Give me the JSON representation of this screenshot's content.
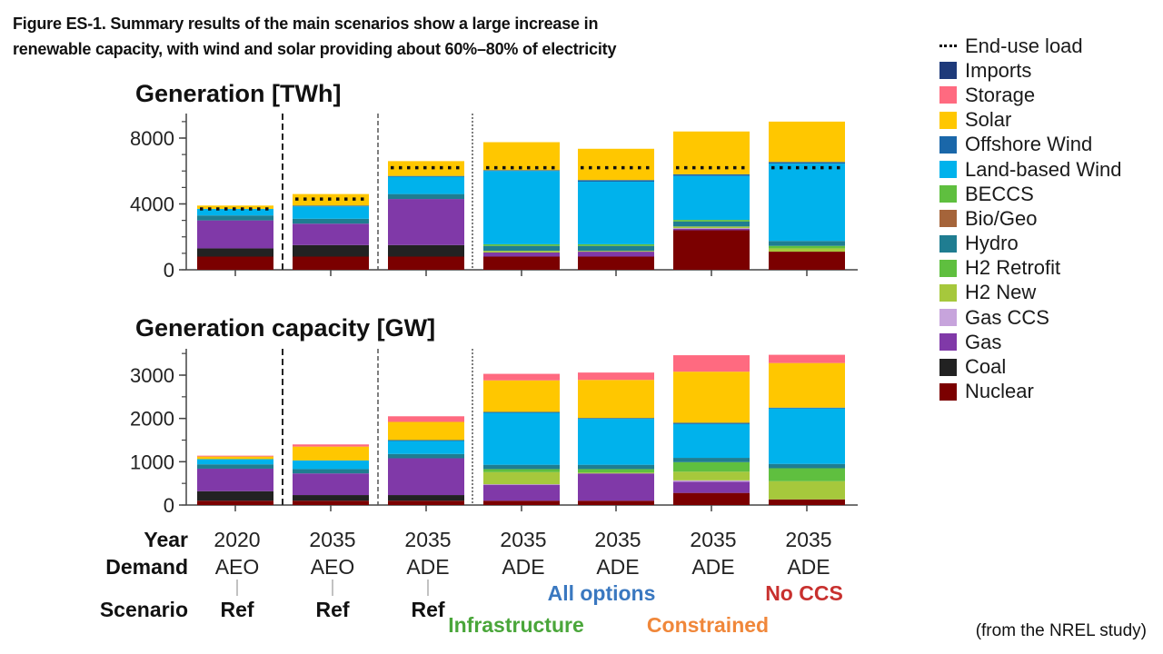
{
  "caption": {
    "line1": "Figure ES-1. Summary results of the main scenarios show a large increase in",
    "line2": "renewable capacity, with wind and solar providing about 60%–80% of electricity"
  },
  "source_note": "(from the NREL study)",
  "chart_data": [
    {
      "type": "bar",
      "stacked": true,
      "title": "Generation [TWh]",
      "ylabel": "TWh",
      "ylim": [
        0,
        9400
      ],
      "yticks": [
        0,
        4000,
        8000
      ],
      "grid": false,
      "categories": [
        "2020 AEO Ref",
        "2035 AEO Ref",
        "2035 ADE Ref",
        "2035 ADE All options",
        "2035 ADE Infrastructure",
        "2035 ADE Constrained",
        "2035 ADE No CCS"
      ],
      "series": [
        {
          "name": "Nuclear",
          "values": [
            800,
            800,
            800,
            800,
            800,
            2400,
            1100
          ]
        },
        {
          "name": "Coal",
          "values": [
            500,
            700,
            700,
            0,
            0,
            0,
            0
          ]
        },
        {
          "name": "Gas",
          "values": [
            1700,
            1300,
            2800,
            250,
            300,
            100,
            0
          ]
        },
        {
          "name": "Gas CCS",
          "values": [
            0,
            0,
            0,
            0,
            0,
            30,
            0
          ]
        },
        {
          "name": "H2 New",
          "values": [
            0,
            0,
            0,
            100,
            50,
            100,
            200
          ]
        },
        {
          "name": "H2 Retrofit",
          "values": [
            0,
            0,
            0,
            0,
            0,
            0,
            150
          ]
        },
        {
          "name": "Hydro",
          "values": [
            300,
            300,
            300,
            300,
            300,
            300,
            300
          ]
        },
        {
          "name": "Bio/Geo",
          "values": [
            0,
            0,
            0,
            0,
            0,
            0,
            0
          ]
        },
        {
          "name": "BECCS",
          "values": [
            0,
            0,
            0,
            100,
            100,
            100,
            0
          ]
        },
        {
          "name": "Land-based Wind",
          "values": [
            400,
            750,
            1050,
            4450,
            3800,
            2670,
            4700
          ]
        },
        {
          "name": "Offshore Wind",
          "values": [
            0,
            50,
            50,
            50,
            100,
            100,
            100
          ]
        },
        {
          "name": "Solar",
          "values": [
            200,
            700,
            900,
            1700,
            1900,
            2600,
            2450
          ]
        },
        {
          "name": "Storage",
          "values": [
            0,
            0,
            0,
            0,
            0,
            0,
            0
          ]
        },
        {
          "name": "Imports",
          "values": [
            0,
            0,
            0,
            0,
            0,
            0,
            0
          ]
        }
      ],
      "end_use_load": [
        3700,
        4300,
        6200,
        6200,
        6200,
        6200,
        6200
      ]
    },
    {
      "type": "bar",
      "stacked": true,
      "title": "Generation capacity [GW]",
      "ylabel": "GW",
      "ylim": [
        0,
        3650
      ],
      "yticks": [
        0,
        1000,
        2000,
        3000
      ],
      "grid": false,
      "categories": [
        "2020 AEO Ref",
        "2035 AEO Ref",
        "2035 ADE Ref",
        "2035 ADE All options",
        "2035 ADE Infrastructure",
        "2035 ADE Constrained",
        "2035 ADE No CCS"
      ],
      "series": [
        {
          "name": "Nuclear",
          "values": [
            100,
            100,
            100,
            100,
            100,
            280,
            130
          ]
        },
        {
          "name": "Coal",
          "values": [
            220,
            130,
            130,
            0,
            0,
            0,
            0
          ]
        },
        {
          "name": "Gas",
          "values": [
            520,
            500,
            850,
            370,
            630,
            260,
            0
          ]
        },
        {
          "name": "Gas CCS",
          "values": [
            0,
            0,
            0,
            10,
            0,
            30,
            0
          ]
        },
        {
          "name": "H2 New",
          "values": [
            0,
            0,
            0,
            280,
            20,
            200,
            420
          ]
        },
        {
          "name": "H2 Retrofit",
          "values": [
            0,
            0,
            0,
            70,
            80,
            220,
            300
          ]
        },
        {
          "name": "Hydro",
          "values": [
            100,
            100,
            100,
            100,
            100,
            100,
            100
          ]
        },
        {
          "name": "Bio/Geo",
          "values": [
            0,
            0,
            0,
            0,
            0,
            0,
            0
          ]
        },
        {
          "name": "BECCS",
          "values": [
            0,
            0,
            0,
            0,
            0,
            0,
            0
          ]
        },
        {
          "name": "Land-based Wind",
          "values": [
            120,
            200,
            300,
            1200,
            1060,
            780,
            1280
          ]
        },
        {
          "name": "Offshore Wind",
          "values": [
            0,
            0,
            20,
            20,
            20,
            30,
            20
          ]
        },
        {
          "name": "Solar",
          "values": [
            60,
            320,
            420,
            730,
            880,
            1180,
            1030
          ]
        },
        {
          "name": "Storage",
          "values": [
            20,
            50,
            130,
            150,
            170,
            380,
            190
          ]
        },
        {
          "name": "Imports",
          "values": [
            0,
            0,
            0,
            0,
            0,
            0,
            0
          ]
        }
      ]
    }
  ],
  "series_colors": {
    "Nuclear": "#7b0000",
    "Coal": "#222222",
    "Gas": "#8039a8",
    "Gas CCS": "#c7a4dc",
    "H2 New": "#a6c83c",
    "H2 Retrofit": "#5fbf3f",
    "Hydro": "#1f7d91",
    "Bio/Geo": "#a5643a",
    "BECCS": "#5fbf3f",
    "Land-based Wind": "#00b2ec",
    "Offshore Wind": "#1a67a9",
    "Solar": "#ffc700",
    "Storage": "#ff6a80",
    "Imports": "#1e3a7a"
  },
  "legend": [
    {
      "label": "End-use load",
      "type": "dots"
    },
    {
      "label": "Imports",
      "color": "#1e3a7a"
    },
    {
      "label": "Storage",
      "color": "#ff6a80"
    },
    {
      "label": "Solar",
      "color": "#ffc700"
    },
    {
      "label": "Offshore Wind",
      "color": "#1a67a9"
    },
    {
      "label": "Land-based Wind",
      "color": "#00b2ec"
    },
    {
      "label": "BECCS",
      "color": "#5fbf3f"
    },
    {
      "label": "Bio/Geo",
      "color": "#a5643a"
    },
    {
      "label": "Hydro",
      "color": "#1f7d91"
    },
    {
      "label": "H2 Retrofit",
      "color": "#5fbf3f"
    },
    {
      "label": "H2 New",
      "color": "#a6c83c"
    },
    {
      "label": "Gas CCS",
      "color": "#c7a4dc"
    },
    {
      "label": "Gas",
      "color": "#8039a8"
    },
    {
      "label": "Coal",
      "color": "#222222"
    },
    {
      "label": "Nuclear",
      "color": "#7b0000"
    }
  ],
  "xaxis": {
    "row_labels": {
      "year": "Year",
      "demand": "Demand",
      "scenario": "Scenario"
    },
    "years": [
      "2020",
      "2035",
      "2035",
      "2035",
      "2035",
      "2035",
      "2035"
    ],
    "demand": [
      "AEO",
      "AEO",
      "ADE",
      "ADE",
      "ADE",
      "ADE",
      "ADE"
    ],
    "ref_labels": [
      "Ref",
      "Ref",
      "Ref"
    ],
    "scenario_labels": [
      {
        "label": "All options",
        "color": "#3a78c0"
      },
      {
        "label": "Infrastructure",
        "color": "#4aa63a"
      },
      {
        "label": "Constrained",
        "color": "#f0873a"
      },
      {
        "label": "No CCS",
        "color": "#c8302e"
      }
    ]
  }
}
